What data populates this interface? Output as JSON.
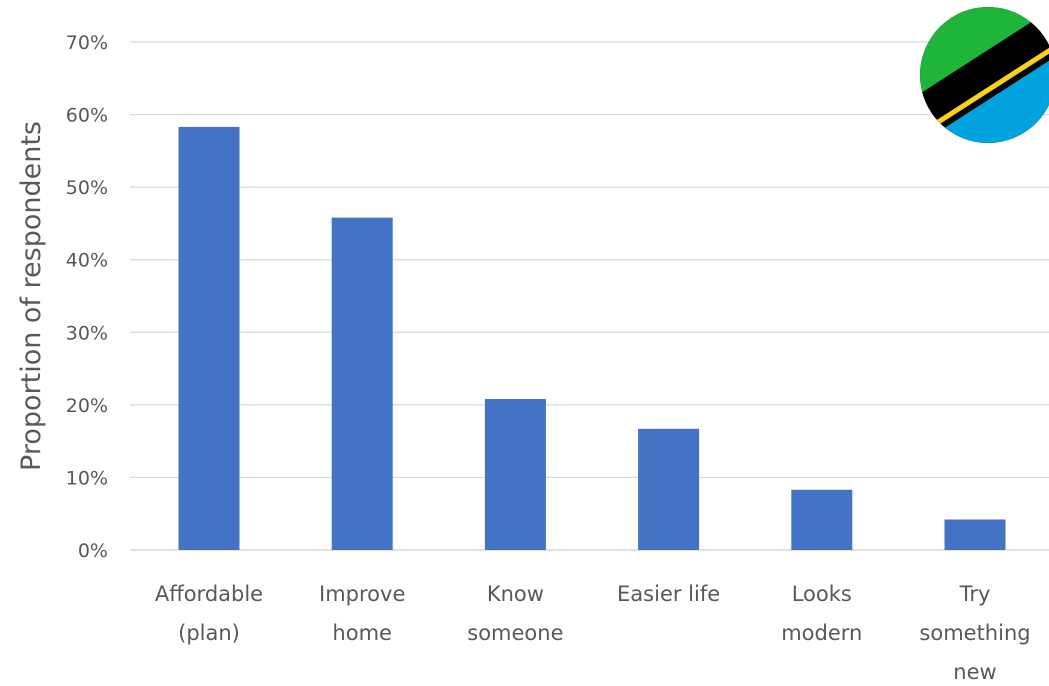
{
  "chart_data": {
    "type": "bar",
    "title": "",
    "xlabel": "",
    "ylabel": "Proportion of respondents",
    "categories": [
      [
        "Affordable",
        "(plan)"
      ],
      [
        "Improve",
        "home"
      ],
      [
        "Know",
        "someone"
      ],
      [
        "Easier life"
      ],
      [
        "Looks",
        "modern"
      ],
      [
        "Try",
        "something",
        "new"
      ]
    ],
    "values": [
      58.3,
      45.8,
      20.8,
      16.7,
      8.3,
      4.2
    ],
    "ylim": [
      0,
      70
    ],
    "yticks": [
      "0%",
      "10%",
      "20%",
      "30%",
      "40%",
      "50%",
      "60%",
      "70%"
    ],
    "grid": true,
    "legend": "none",
    "bar_color": "#4472c4"
  },
  "flag": {
    "icon": "tanzania-flag-icon",
    "colors": {
      "green": "#1eb53a",
      "black": "#000000",
      "yellow": "#fcd116",
      "blue": "#00a3dd"
    }
  }
}
